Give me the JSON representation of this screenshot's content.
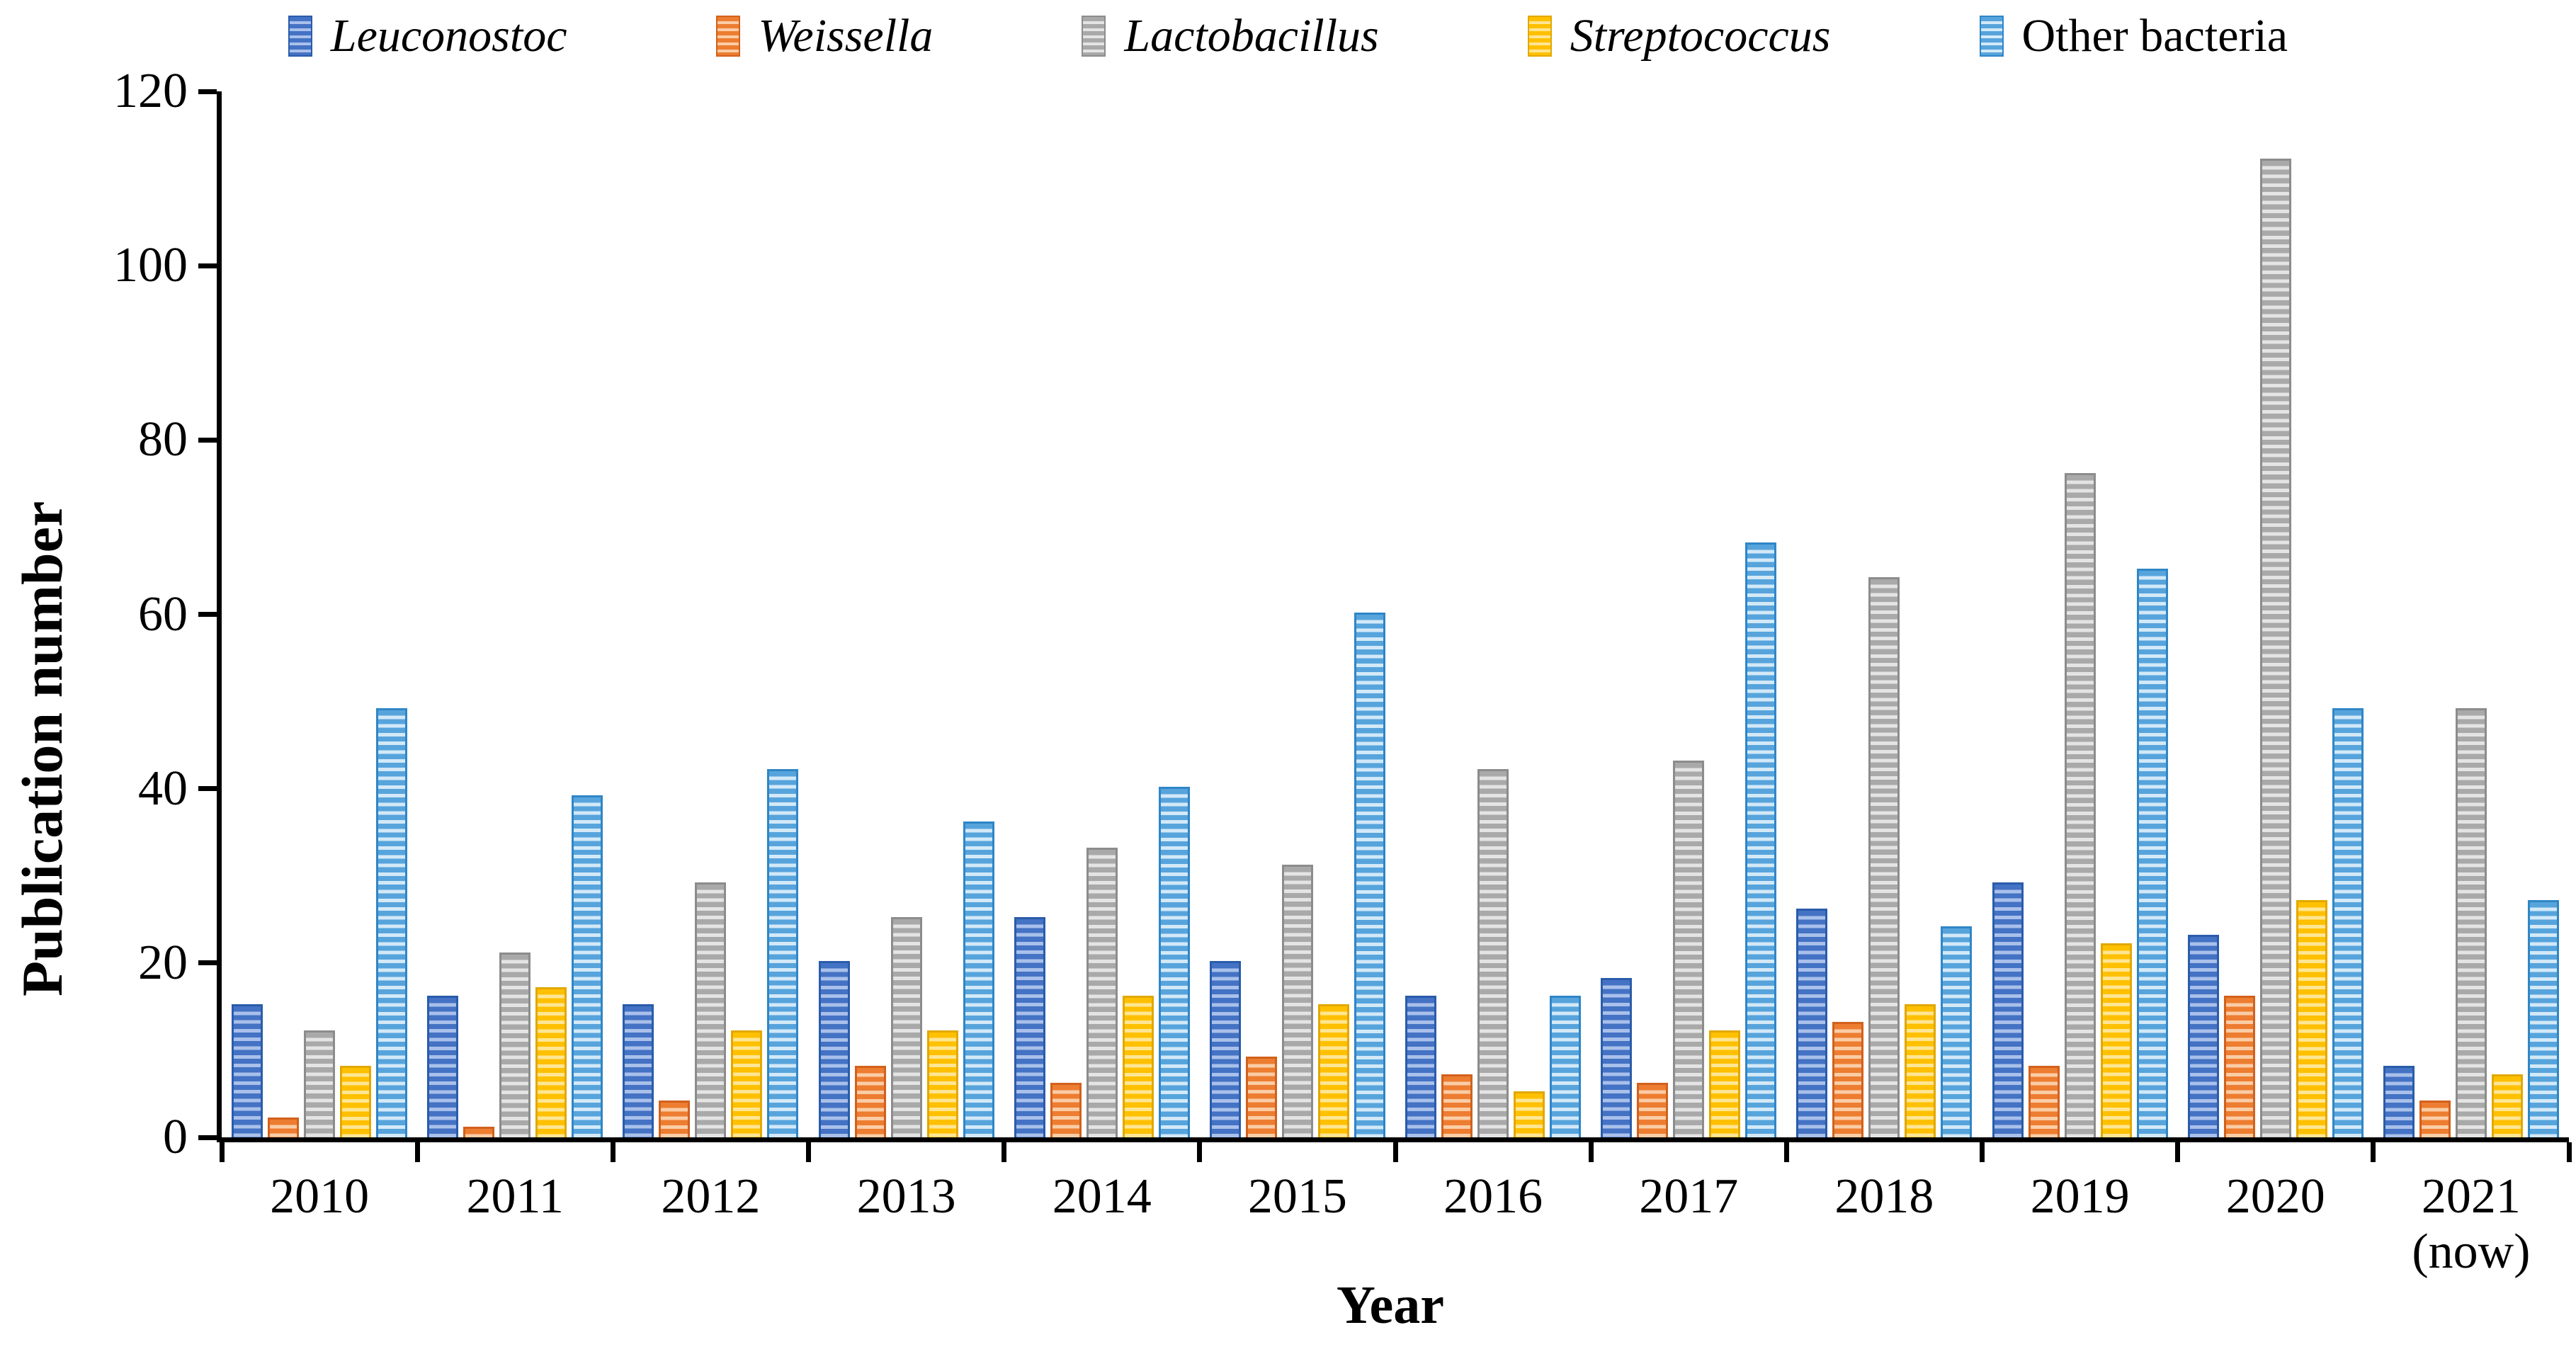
{
  "chart_data": {
    "type": "bar",
    "title": "",
    "xlabel": "Year",
    "ylabel": "Publication number",
    "ylim": [
      0,
      120
    ],
    "yticks": [
      0,
      20,
      40,
      60,
      80,
      100,
      120
    ],
    "grid": false,
    "legend_position": "top",
    "axis_color": "#000000",
    "categories": [
      [
        "2010"
      ],
      [
        "2011"
      ],
      [
        "2012"
      ],
      [
        "2013"
      ],
      [
        "2014"
      ],
      [
        "2015"
      ],
      [
        "2016"
      ],
      [
        "2017"
      ],
      [
        "2018"
      ],
      [
        "2019"
      ],
      [
        "2020"
      ],
      [
        "2021",
        "(now)"
      ]
    ],
    "series": [
      {
        "name": "Leuconostoc",
        "italic": true,
        "color": "#4472C4",
        "stripe_color": "#A9C0EA",
        "border_color": "#2A5CAA",
        "values": [
          15,
          16,
          15,
          20,
          25,
          20,
          16,
          18,
          26,
          29,
          23,
          8
        ]
      },
      {
        "name": "Weissella",
        "italic": true,
        "color": "#ED7D31",
        "stripe_color": "#FACDA6",
        "border_color": "#D2611C",
        "values": [
          2,
          1,
          4,
          8,
          6,
          9,
          7,
          6,
          13,
          8,
          16,
          4
        ]
      },
      {
        "name": "Lactobacillus",
        "italic": true,
        "color": "#A9A9A9",
        "stripe_color": "#E4E4E4",
        "border_color": "#8C8C8C",
        "values": [
          12,
          21,
          29,
          25,
          33,
          31,
          42,
          43,
          64,
          76,
          112,
          49
        ]
      },
      {
        "name": "Streptococcus",
        "italic": true,
        "color": "#FFC000",
        "stripe_color": "#FFE694",
        "border_color": "#E2A800",
        "values": [
          8,
          17,
          12,
          12,
          16,
          15,
          5,
          12,
          15,
          22,
          27,
          7
        ]
      },
      {
        "name": "Other bacteria",
        "italic": false,
        "color": "#57A4DC",
        "stripe_color": "#D3E9F8",
        "border_color": "#2F86C7",
        "values": [
          49,
          39,
          42,
          36,
          40,
          60,
          16,
          68,
          24,
          65,
          49,
          27
        ]
      }
    ]
  }
}
